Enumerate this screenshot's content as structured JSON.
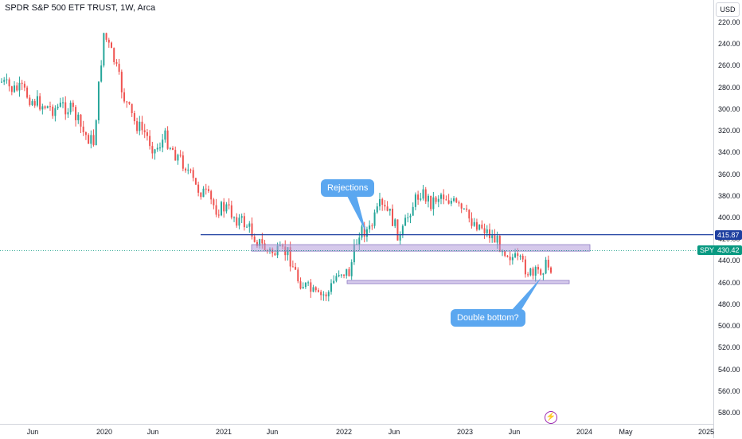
{
  "header": {
    "title": "SPDR S&P 500 ETF TRUST, 1W, Arca"
  },
  "price_axis": {
    "currency": "USD",
    "ticks": [
      "220.00",
      "240.00",
      "260.00",
      "280.00",
      "300.00",
      "320.00",
      "340.00",
      "360.00",
      "380.00",
      "400.00",
      "420.00",
      "440.00",
      "460.00",
      "480.00",
      "500.00",
      "520.00",
      "540.00",
      "560.00",
      "580.00"
    ],
    "price_label": {
      "symbol": "SPY",
      "value": "430.42"
    },
    "level_label": "415.87"
  },
  "time_axis": {
    "ticks": [
      "Jun",
      "2020",
      "Jun",
      "2021",
      "Jun",
      "2022",
      "Jun",
      "2023",
      "Jun",
      "2024",
      "May",
      "2025"
    ]
  },
  "annotations": {
    "rejections": "Rejections",
    "double_bottom": "Double bottom?"
  },
  "colors": {
    "up": "#26a69a",
    "down": "#ef5350",
    "line": "#1e3fa0",
    "zone": "#b39ddb",
    "accent": "#089981",
    "bubble": "#5ba7f0",
    "marker": "#9c27b0"
  },
  "chart_data": {
    "type": "candlestick",
    "interval": "1W",
    "scale": "inverted",
    "ylim": [
      580,
      210
    ],
    "x": [
      "2019-05",
      "2019-06",
      "2019-07",
      "2019-08",
      "2019-09",
      "2019-10",
      "2019-11",
      "2019-12",
      "2020-01",
      "2020-02",
      "2020-03",
      "2020-04",
      "2020-05",
      "2020-06",
      "2020-07",
      "2020-08",
      "2020-09",
      "2020-10",
      "2020-11",
      "2020-12",
      "2021-01",
      "2021-02",
      "2021-03",
      "2021-04",
      "2021-05",
      "2021-06",
      "2021-07",
      "2021-08",
      "2021-09",
      "2021-10",
      "2021-11",
      "2021-12",
      "2022-01",
      "2022-02",
      "2022-03",
      "2022-04",
      "2022-05",
      "2022-06",
      "2022-07",
      "2022-08",
      "2022-09",
      "2022-10",
      "2022-11",
      "2022-12",
      "2023-01",
      "2023-02",
      "2023-03",
      "2023-04",
      "2023-05",
      "2023-06",
      "2023-07",
      "2023-08",
      "2023-09",
      "2023-10"
    ],
    "close": [
      275,
      282,
      282,
      292,
      296,
      300,
      297,
      302,
      322,
      331,
      230,
      255,
      290,
      312,
      322,
      338,
      326,
      341,
      352,
      372,
      379,
      392,
      391,
      401,
      407,
      421,
      431,
      433,
      432,
      457,
      466,
      474,
      469,
      449,
      451,
      412,
      412,
      390,
      397,
      420,
      392,
      376,
      386,
      378,
      385,
      394,
      403,
      408,
      418,
      427,
      437,
      444,
      455,
      445
    ],
    "levels": [
      {
        "name": "horizontal line",
        "value": 415.87
      },
      {
        "name": "resistance zone",
        "from": 425,
        "to": 431
      },
      {
        "name": "support zone",
        "from": 458,
        "to": 461
      }
    ],
    "last": 430.42
  }
}
